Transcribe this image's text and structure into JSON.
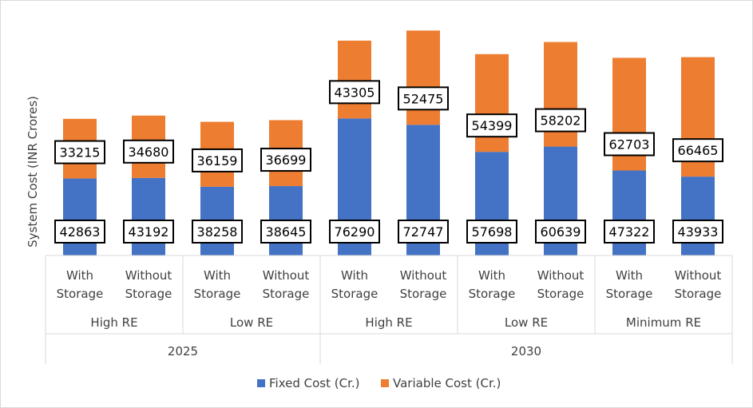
{
  "chart_data": {
    "type": "bar",
    "stacked": true,
    "ylabel": "System Cost (INR Crores)",
    "categories": [
      "With Storage",
      "Without Storage",
      "With Storage",
      "Without Storage",
      "With Storage",
      "Without Storage",
      "With Storage",
      "Without Storage",
      "With Storage",
      "Without Storage"
    ],
    "category_lines": [
      [
        "With",
        "Storage"
      ],
      [
        "Without",
        "Storage"
      ],
      [
        "With",
        "Storage"
      ],
      [
        "Without",
        "Storage"
      ],
      [
        "With",
        "Storage"
      ],
      [
        "Without",
        "Storage"
      ],
      [
        "With",
        "Storage"
      ],
      [
        "Without",
        "Storage"
      ],
      [
        "With",
        "Storage"
      ],
      [
        "Without",
        "Storage"
      ]
    ],
    "groups": [
      {
        "label": "High RE",
        "span": 2
      },
      {
        "label": "Low RE",
        "span": 2
      },
      {
        "label": "High RE",
        "span": 2
      },
      {
        "label": "Low RE",
        "span": 2
      },
      {
        "label": "Minimum RE",
        "span": 2
      }
    ],
    "years": [
      {
        "label": "2025",
        "span": 4
      },
      {
        "label": "2030",
        "span": 6
      }
    ],
    "series": [
      {
        "name": "Fixed Cost (Cr.)",
        "color": "#4472C4",
        "values": [
          42863,
          43192,
          38258,
          38645,
          76290,
          72747,
          57698,
          60639,
          47322,
          43933
        ]
      },
      {
        "name": "Variable Cost (Cr.)",
        "color": "#ED7D31",
        "values": [
          33215,
          34680,
          36159,
          36699,
          43305,
          52475,
          54399,
          58202,
          62703,
          66465
        ]
      }
    ],
    "ylim": [
      0,
      130000
    ],
    "grid": false,
    "legend": "bottom"
  }
}
